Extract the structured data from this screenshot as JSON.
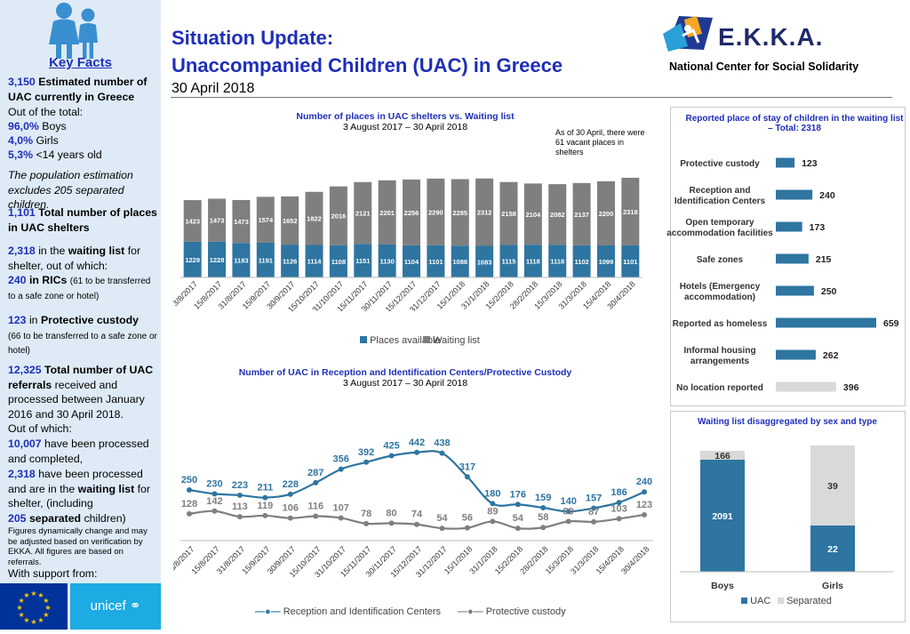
{
  "header": {
    "title_line1": "Situation Update:",
    "title_line2": "Unaccompanied Children (UAC) in Greece",
    "date": "30 April 2018",
    "org_name": "E.K.K.A.",
    "org_subtitle": "National Center for Social Solidarity"
  },
  "sidebar": {
    "heading": "Key Facts",
    "est_value": "3,150",
    "est_text": "Estimated number of UAC currently in Greece",
    "out_of_total": "Out of the total:",
    "boys_pct": "96,0%",
    "boys_label": "Boys",
    "girls_pct": "4,0%",
    "girls_label": "Girls",
    "under14_pct": "5,3%",
    "under14_label": "<14 years old",
    "estimation_note": "The population estimation excludes 205 separated children.",
    "places_value": "1,101",
    "places_text": "Total number of places in UAC shelters",
    "waiting_value": "2,318",
    "waiting_text1": "in the",
    "waiting_text2": "waiting list",
    "waiting_text3": "for shelter, out of which:",
    "rics_value": "240",
    "rics_label": "in RICs",
    "rics_note": "(61 to be transferred to a safe zone or hotel)",
    "pc_value": "123",
    "pc_label1": "in",
    "pc_label2": "Protective custody",
    "pc_note": "(66 to be transferred to a safe zone or hotel)",
    "ref_value": "12,325",
    "ref_text1": "Total number of UAC referrals",
    "ref_text2": "received and processed between January 2016 and 30 April 2018.",
    "of_which": "Out of which:",
    "processed_value": "10,007",
    "processed_text": "have been processed and completed,",
    "wl_value": "2,318",
    "wl_text1": "have been processed and are in the",
    "wl_text2": "waiting list",
    "wl_text3": "for shelter, (including",
    "sep_value": "205",
    "sep_text1": "separated",
    "sep_text2": "children)",
    "figures_note": "Figures dynamically change and may be adjusted based on verification by EKKA. All figures are based on referrals.",
    "support_label": "With support from:",
    "unicef_label": "unicef"
  },
  "chart_data": [
    {
      "type": "bar",
      "title": "Number of places in UAC shelters vs. Waiting list",
      "subtitle": "3 August 2017 – 30 April 2018",
      "annotation": "As of 30 April, there were 61 vacant places in shelters",
      "stacked": true,
      "categories": [
        "3/8/2017",
        "15/8/2017",
        "31/8/2017",
        "15/9/2017",
        "30/9/2017",
        "15/10/2017",
        "31/10/2017",
        "15/11/2017",
        "30/11/2017",
        "15/12/2017",
        "31/12/2017",
        "15/1/2018",
        "31/1/2018",
        "15/2/2018",
        "28/2/2018",
        "15/3/2018",
        "31/3/2018",
        "15/4/2018",
        "30/4/2018"
      ],
      "series": [
        {
          "name": "Places available",
          "color": "#2e75a1",
          "values": [
            1229,
            1228,
            1183,
            1191,
            1126,
            1114,
            1108,
            1151,
            1130,
            1104,
            1101,
            1088,
            1083,
            1115,
            1118,
            1118,
            1102,
            1099,
            1101
          ]
        },
        {
          "name": "Waiting list",
          "color": "#7f7f7f",
          "values": [
            1423,
            1473,
            1473,
            1574,
            1652,
            1822,
            2016,
            2121,
            2201,
            2256,
            2290,
            2285,
            2312,
            2158,
            2104,
            2082,
            2137,
            2200,
            2318
          ]
        }
      ],
      "ylim": [
        0,
        3600
      ],
      "legend": "bottom"
    },
    {
      "type": "line",
      "title": "Number of UAC in Reception and Identification Centers/Protective Custody",
      "subtitle": "3 August 2017 – 30 April 2018",
      "categories": [
        "3/8/2017",
        "15/8/2017",
        "31/8/2017",
        "15/9/2017",
        "30/9/2017",
        "15/10/2017",
        "31/10/2017",
        "15/11/2017",
        "30/11/2017",
        "15/12/2017",
        "31/12/2017",
        "15/1/2018",
        "31/1/2018",
        "15/2/2018",
        "28/2/2018",
        "15/3/2018",
        "31/3/2018",
        "15/4/2018",
        "30/4/2018"
      ],
      "series": [
        {
          "name": "Reception and Identification Centers",
          "color": "#2e75a1",
          "values": [
            250,
            230,
            223,
            211,
            228,
            287,
            356,
            392,
            425,
            442,
            438,
            317,
            180,
            176,
            159,
            140,
            157,
            186,
            240
          ]
        },
        {
          "name": "Protective custody",
          "color": "#7f7f7f",
          "values": [
            128,
            142,
            113,
            119,
            106,
            116,
            107,
            78,
            80,
            74,
            54,
            56,
            89,
            54,
            58,
            89,
            87,
            103,
            123
          ]
        }
      ],
      "ylim": [
        0,
        500
      ],
      "legend": "bottom"
    },
    {
      "type": "bar",
      "orientation": "horizontal",
      "title": "Reported place of stay of children in the waiting list – Total: 2318",
      "categories": [
        "Protective custody",
        "Reception and Identification Centers",
        "Open temporary accommodation facilities",
        "Safe zones",
        "Hotels (Emergency accommodation)",
        "Reported as homeless",
        "Informal housing arrangements",
        "No location reported"
      ],
      "values": [
        123,
        240,
        173,
        215,
        250,
        659,
        262,
        396
      ],
      "colors": [
        "#2e75a1",
        "#2e75a1",
        "#2e75a1",
        "#2e75a1",
        "#2e75a1",
        "#2e75a1",
        "#2e75a1",
        "#d9d9d9"
      ],
      "xlim": [
        0,
        700
      ]
    },
    {
      "type": "bar",
      "stacked": true,
      "title": "Waiting list disaggregated by sex and type",
      "categories": [
        "Boys",
        "Girls"
      ],
      "series": [
        {
          "name": "UAC",
          "color": "#2e75a1",
          "values": [
            2091,
            22
          ]
        },
        {
          "name": "Separated",
          "color": "#d9d9d9",
          "values": [
            166,
            39
          ]
        }
      ],
      "legend": "bottom"
    }
  ]
}
